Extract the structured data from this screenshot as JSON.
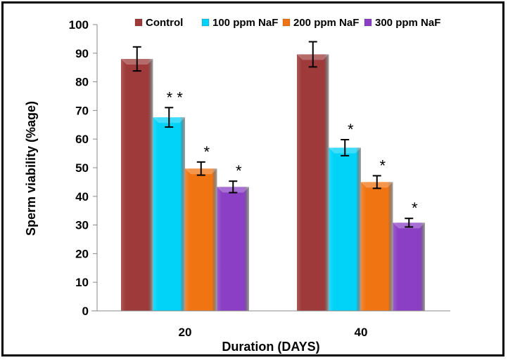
{
  "chart_data": {
    "type": "bar",
    "title": "",
    "xlabel": "Duration (DAYS)",
    "ylabel": "Sperm viability (%age)",
    "ylim": [
      0,
      100
    ],
    "yticks": [
      0,
      10,
      20,
      30,
      40,
      50,
      60,
      70,
      80,
      90,
      100
    ],
    "categories": [
      "20",
      "40"
    ],
    "legend_position": "top",
    "grid": false,
    "series": [
      {
        "name": "Control",
        "color": "#9e3a3a",
        "values": [
          88,
          89.6
        ],
        "errors": [
          4.2,
          4.4
        ],
        "annotations": [
          "",
          ""
        ]
      },
      {
        "name": "100 ppm NaF",
        "color": "#00d2f8",
        "values": [
          67.6,
          57
        ],
        "errors": [
          3.4,
          2.8
        ],
        "annotations": [
          "**",
          "*"
        ]
      },
      {
        "name": "200 ppm NaF",
        "color": "#f07412",
        "values": [
          49.7,
          45
        ],
        "errors": [
          2.3,
          2.2
        ],
        "annotations": [
          "*",
          "*"
        ]
      },
      {
        "name": "300 ppm NaF",
        "color": "#8a3fc4",
        "values": [
          43.3,
          30.8
        ],
        "errors": [
          2.0,
          1.5
        ],
        "annotations": [
          "*",
          "*"
        ]
      }
    ]
  }
}
